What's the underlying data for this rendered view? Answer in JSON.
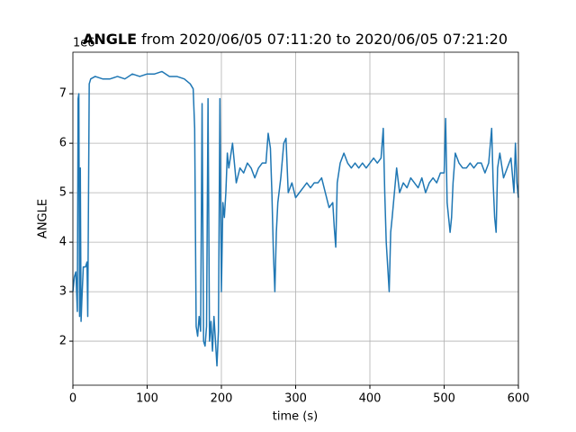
{
  "chart_data": {
    "type": "line",
    "title_bold": "ANGLE",
    "title": "from 2020/06/05 07:11:20 to 2020/06/05 07:21:20",
    "x_label": "time (s)",
    "y_label": "ANGLE",
    "y_offset_label": "1e6",
    "xlim": [
      0,
      600
    ],
    "ylim": [
      1.11,
      7.84
    ],
    "xticks": [
      0,
      100,
      200,
      300,
      400,
      500,
      600
    ],
    "yticks": [
      2,
      3,
      4,
      5,
      6,
      7
    ],
    "grid": true,
    "series": [
      {
        "color": "#1f77b4",
        "x": [
          0,
          2,
          4,
          6,
          7,
          8,
          9,
          10,
          11,
          12,
          14,
          17,
          19,
          20,
          22,
          24,
          30,
          40,
          50,
          60,
          70,
          80,
          90,
          100,
          110,
          120,
          130,
          140,
          150,
          158,
          162,
          164,
          166,
          168,
          170,
          172,
          174,
          176,
          178,
          180,
          182,
          184,
          186,
          188,
          190,
          192,
          194,
          196,
          198,
          200,
          202,
          204,
          206,
          208,
          210,
          215,
          220,
          225,
          230,
          235,
          240,
          245,
          250,
          255,
          260,
          263,
          266,
          268,
          270,
          272,
          274,
          276,
          280,
          284,
          287,
          290,
          295,
          300,
          305,
          310,
          315,
          320,
          325,
          330,
          335,
          340,
          345,
          350,
          352,
          354,
          356,
          360,
          365,
          370,
          375,
          380,
          385,
          390,
          395,
          400,
          405,
          410,
          415,
          418,
          420,
          422,
          424,
          426,
          428,
          430,
          433,
          436,
          440,
          445,
          450,
          455,
          460,
          465,
          470,
          475,
          480,
          485,
          490,
          495,
          500,
          502,
          504,
          506,
          508,
          510,
          512,
          515,
          520,
          525,
          530,
          535,
          540,
          545,
          550,
          555,
          560,
          564,
          566,
          568,
          570,
          572,
          575,
          580,
          585,
          590,
          594,
          596,
          598,
          600
        ],
        "values": [
          3.0,
          3.3,
          3.4,
          2.6,
          6.9,
          7.0,
          2.5,
          5.5,
          2.4,
          2.8,
          3.5,
          3.5,
          3.6,
          2.5,
          7.2,
          7.3,
          7.35,
          7.3,
          7.3,
          7.35,
          7.3,
          7.4,
          7.35,
          7.4,
          7.4,
          7.45,
          7.35,
          7.35,
          7.3,
          7.2,
          7.1,
          6.3,
          2.3,
          2.1,
          2.5,
          2.2,
          6.8,
          2.0,
          1.9,
          2.3,
          6.9,
          2.0,
          2.4,
          1.8,
          2.5,
          2.0,
          1.5,
          2.2,
          6.9,
          3.0,
          4.8,
          4.5,
          5.0,
          5.8,
          5.5,
          6.0,
          5.2,
          5.5,
          5.4,
          5.6,
          5.5,
          5.3,
          5.5,
          5.6,
          5.6,
          6.2,
          5.9,
          5.0,
          3.8,
          3.0,
          4.2,
          4.8,
          5.3,
          6.0,
          6.1,
          5.0,
          5.2,
          4.9,
          5.0,
          5.1,
          5.2,
          5.1,
          5.2,
          5.2,
          5.3,
          5.0,
          4.7,
          4.8,
          4.3,
          3.9,
          5.2,
          5.6,
          5.8,
          5.6,
          5.5,
          5.6,
          5.5,
          5.6,
          5.5,
          5.6,
          5.7,
          5.6,
          5.7,
          6.3,
          5.0,
          4.0,
          3.5,
          3.0,
          4.2,
          4.5,
          5.0,
          5.5,
          5.0,
          5.2,
          5.1,
          5.3,
          5.2,
          5.1,
          5.3,
          5.0,
          5.2,
          5.3,
          5.2,
          5.4,
          5.4,
          6.5,
          4.8,
          4.5,
          4.2,
          4.5,
          5.2,
          5.8,
          5.6,
          5.5,
          5.5,
          5.6,
          5.5,
          5.6,
          5.6,
          5.4,
          5.6,
          6.3,
          5.2,
          4.5,
          4.2,
          5.5,
          5.8,
          5.3,
          5.5,
          5.7,
          5.0,
          6.0,
          5.2,
          4.9
        ]
      }
    ]
  }
}
